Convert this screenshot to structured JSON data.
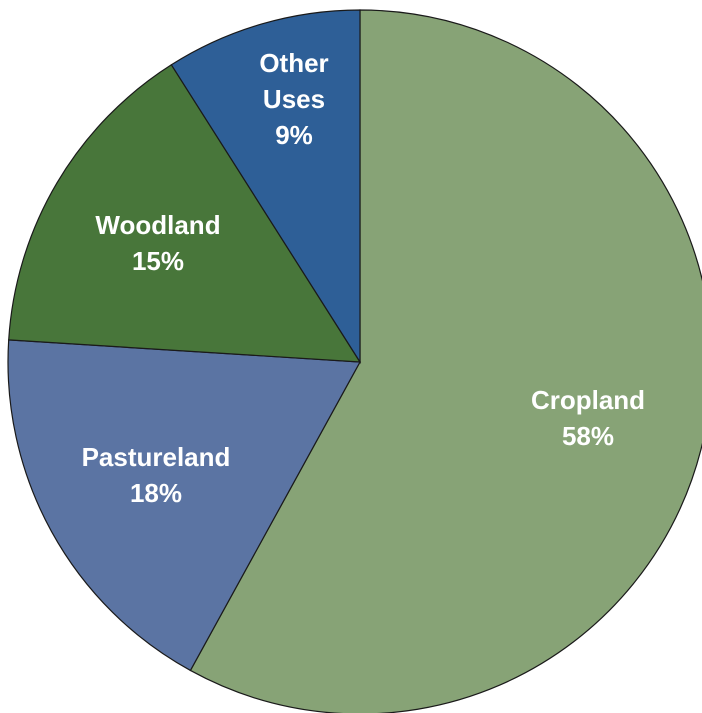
{
  "chart_data": {
    "type": "pie",
    "title": "",
    "slices": [
      {
        "name": "Cropland",
        "value": 58,
        "value_label": "58%",
        "label_lines": [
          "Cropland"
        ],
        "color": "#87a376"
      },
      {
        "name": "Pastureland",
        "value": 18,
        "value_label": "18%",
        "label_lines": [
          "Pastureland"
        ],
        "color": "#5b74a3"
      },
      {
        "name": "Woodland",
        "value": 15,
        "value_label": "15%",
        "label_lines": [
          "Woodland"
        ],
        "color": "#48763a"
      },
      {
        "name": "Other Uses",
        "value": 9,
        "value_label": "9%",
        "label_lines": [
          "Other",
          "Uses"
        ],
        "color": "#2e5f97"
      }
    ],
    "start_position": "top",
    "direction": "clockwise",
    "legend": "none",
    "labels": "inside"
  }
}
